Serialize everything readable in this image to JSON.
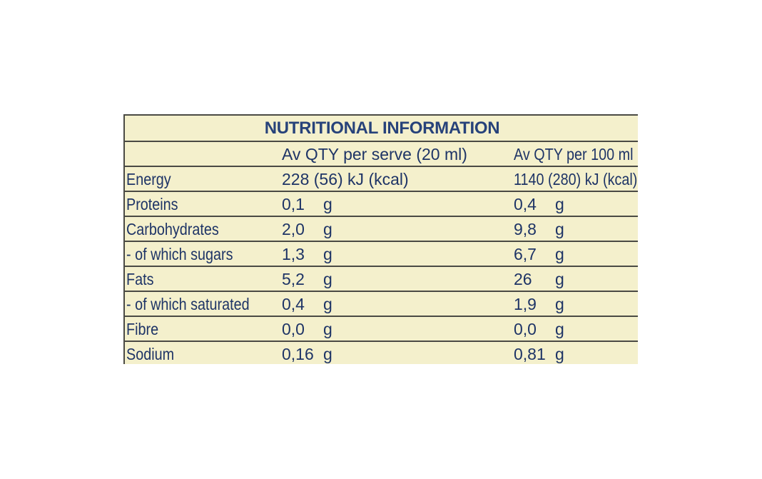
{
  "table": {
    "title": "NUTRITIONAL INFORMATION",
    "headers": {
      "nutrient": "",
      "per_serve": "Av QTY per serve (20 ml)",
      "per_100": "Av QTY per 100 ml"
    },
    "rows": [
      {
        "name": "Energy",
        "serve": "228 (56) kJ (kcal)",
        "serve_unit": "",
        "per100": "1140 (280) kJ (kcal)",
        "per100_unit": ""
      },
      {
        "name": "Proteins",
        "serve": "0,1",
        "serve_unit": "g",
        "per100": "0,4",
        "per100_unit": "g"
      },
      {
        "name": "Carbohydrates",
        "serve": "2,0",
        "serve_unit": "g",
        "per100": "9,8",
        "per100_unit": "g"
      },
      {
        "name": "- of which sugars",
        "serve": "1,3",
        "serve_unit": "g",
        "per100": "6,7",
        "per100_unit": "g"
      },
      {
        "name": "Fats",
        "serve": "5,2",
        "serve_unit": "g",
        "per100": "26",
        "per100_unit": "g"
      },
      {
        "name": "- of which saturated",
        "serve": "0,4",
        "serve_unit": "g",
        "per100": "1,9",
        "per100_unit": "g"
      },
      {
        "name": "Fibre",
        "serve": "0,0",
        "serve_unit": "g",
        "per100": "0,0",
        "per100_unit": "g"
      },
      {
        "name": "Sodium",
        "serve": "0,16",
        "serve_unit": "g",
        "per100": "0,81",
        "per100_unit": "g"
      }
    ]
  },
  "colors": {
    "panel": "#f4f0cc",
    "text": "#1e3466",
    "title": "#27427a",
    "rule": "#4a4a44"
  }
}
